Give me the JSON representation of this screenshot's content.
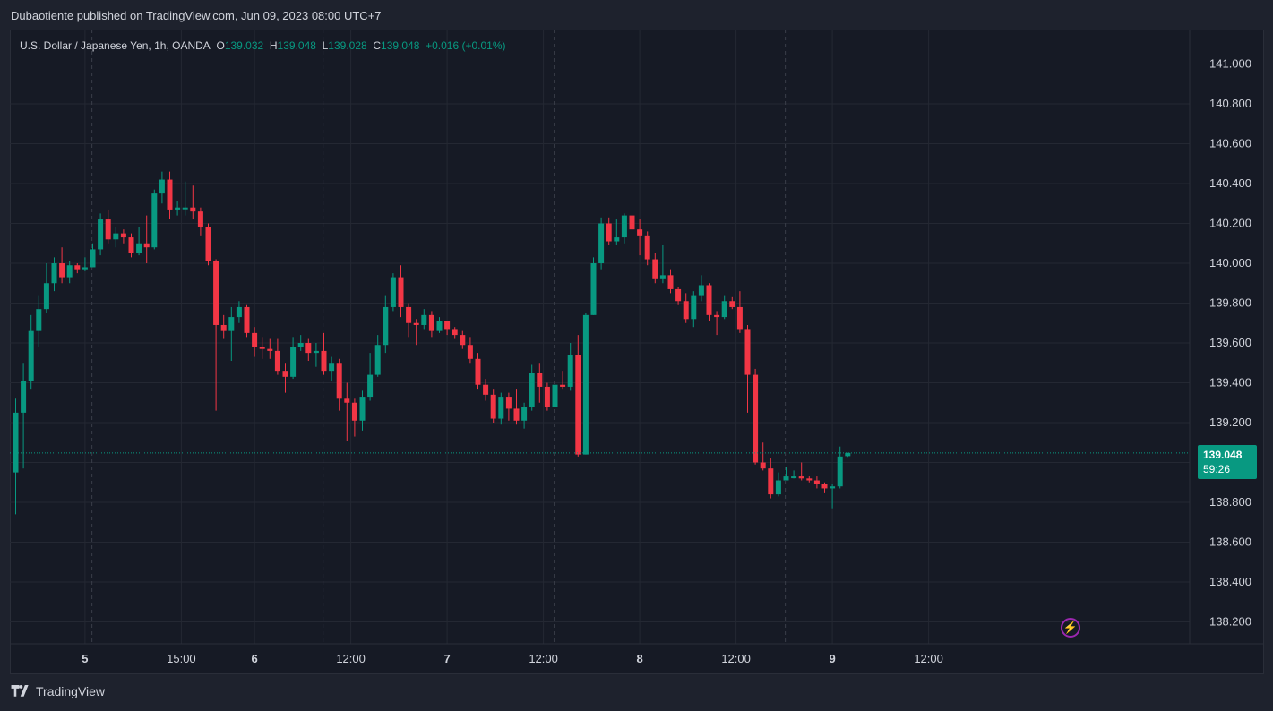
{
  "header": {
    "publisher_line": "Dubaotiente published on TradingView.com, Jun 09, 2023 08:00 UTC+7"
  },
  "legend": {
    "symbol": "U.S. Dollar / Japanese Yen, 1h, OANDA",
    "o_label": "O",
    "o_value": "139.032",
    "h_label": "H",
    "h_value": "139.048",
    "l_label": "L",
    "l_value": "139.028",
    "c_label": "C",
    "c_value": "139.048",
    "change": "+0.016 (+0.01%)"
  },
  "last_price": {
    "value": "139.048",
    "countdown": "59:26"
  },
  "footer": {
    "brand": "TradingView"
  },
  "icons": {
    "flash": "flash-icon",
    "logo": "tradingview-logo-icon"
  },
  "colors": {
    "up": "#089981",
    "down": "#f23645",
    "background": "#161a25",
    "grid": "#242833",
    "text": "#d1d4dc"
  },
  "chart_data": {
    "type": "candlestick",
    "ylim": [
      138.1,
      141.1
    ],
    "yticks": [
      138.2,
      138.4,
      138.6,
      138.8,
      139.0,
      139.2,
      139.4,
      139.6,
      139.8,
      140.0,
      140.2,
      140.4,
      140.6,
      140.8,
      141.0
    ],
    "ytick_labels": [
      "138.200",
      "138.400",
      "138.600",
      "138.800",
      "139.000",
      "139.200",
      "139.400",
      "139.600",
      "139.800",
      "140.000",
      "140.200",
      "140.400",
      "140.600",
      "140.800",
      "141.000"
    ],
    "xticks": [
      {
        "label": "5",
        "index": 9,
        "bold": true
      },
      {
        "label": "15:00",
        "index": 21.5,
        "bold": false
      },
      {
        "label": "6",
        "index": 31,
        "bold": true
      },
      {
        "label": "12:00",
        "index": 43.5,
        "bold": false
      },
      {
        "label": "7",
        "index": 56,
        "bold": true
      },
      {
        "label": "12:00",
        "index": 68.5,
        "bold": false
      },
      {
        "label": "8",
        "index": 81,
        "bold": true
      },
      {
        "label": "12:00",
        "index": 93.5,
        "bold": false
      },
      {
        "label": "9",
        "index": 106,
        "bold": true
      },
      {
        "label": "12:00",
        "index": 118.5,
        "bold": false
      }
    ],
    "last_price": 139.048,
    "candles": [
      [
        138.95,
        139.25,
        139.32,
        138.74
      ],
      [
        139.25,
        139.41,
        139.5,
        138.97
      ],
      [
        139.41,
        139.66,
        139.74,
        139.37
      ],
      [
        139.66,
        139.77,
        139.84,
        139.58
      ],
      [
        139.77,
        139.9,
        140.0,
        139.75
      ],
      [
        139.9,
        140.0,
        140.03,
        139.86
      ],
      [
        140.0,
        139.93,
        140.08,
        139.9
      ],
      [
        139.93,
        139.99,
        140.01,
        139.9
      ],
      [
        139.99,
        139.97,
        140.0,
        139.95
      ],
      [
        139.97,
        139.98,
        140.03,
        139.96
      ],
      [
        139.98,
        140.07,
        140.1,
        139.98
      ],
      [
        140.07,
        140.22,
        140.25,
        140.04
      ],
      [
        140.22,
        140.12,
        140.27,
        140.1
      ],
      [
        140.12,
        140.15,
        140.18,
        140.08
      ],
      [
        140.15,
        140.13,
        140.17,
        140.1
      ],
      [
        140.13,
        140.05,
        140.15,
        140.03
      ],
      [
        140.05,
        140.1,
        140.18,
        140.04
      ],
      [
        140.1,
        140.08,
        140.24,
        140.0
      ],
      [
        140.08,
        140.35,
        140.37,
        140.07
      ],
      [
        140.35,
        140.42,
        140.46,
        140.3
      ],
      [
        140.42,
        140.27,
        140.46,
        140.22
      ],
      [
        140.27,
        140.28,
        140.31,
        140.24
      ],
      [
        140.28,
        140.28,
        140.41,
        140.24
      ],
      [
        140.28,
        140.26,
        140.39,
        140.22
      ],
      [
        140.26,
        140.18,
        140.28,
        140.14
      ],
      [
        140.18,
        140.01,
        140.2,
        139.99
      ],
      [
        140.01,
        139.69,
        140.02,
        139.26
      ],
      [
        139.69,
        139.66,
        139.74,
        139.62
      ],
      [
        139.66,
        139.73,
        139.78,
        139.51
      ],
      [
        139.73,
        139.78,
        139.81,
        139.7
      ],
      [
        139.78,
        139.65,
        139.79,
        139.63
      ],
      [
        139.65,
        139.58,
        139.68,
        139.53
      ],
      [
        139.58,
        139.57,
        139.63,
        139.52
      ],
      [
        139.57,
        139.56,
        139.62,
        139.52
      ],
      [
        139.56,
        139.46,
        139.62,
        139.44
      ],
      [
        139.46,
        139.43,
        139.5,
        139.35
      ],
      [
        139.43,
        139.58,
        139.63,
        139.42
      ],
      [
        139.58,
        139.6,
        139.64,
        139.56
      ],
      [
        139.6,
        139.55,
        139.62,
        139.51
      ],
      [
        139.55,
        139.56,
        139.6,
        139.48
      ],
      [
        139.56,
        139.46,
        139.65,
        139.44
      ],
      [
        139.46,
        139.5,
        139.53,
        139.41
      ],
      [
        139.5,
        139.32,
        139.52,
        139.26
      ],
      [
        139.32,
        139.3,
        139.4,
        139.11
      ],
      [
        139.3,
        139.21,
        139.32,
        139.13
      ],
      [
        139.21,
        139.33,
        139.36,
        139.16
      ],
      [
        139.33,
        139.44,
        139.55,
        139.31
      ],
      [
        139.44,
        139.59,
        139.64,
        139.43
      ],
      [
        139.59,
        139.78,
        139.84,
        139.55
      ],
      [
        139.78,
        139.93,
        139.95,
        139.76
      ],
      [
        139.93,
        139.78,
        139.99,
        139.73
      ],
      [
        139.78,
        139.7,
        139.8,
        139.63
      ],
      [
        139.7,
        139.69,
        139.72,
        139.59
      ],
      [
        139.69,
        139.74,
        139.77,
        139.67
      ],
      [
        139.74,
        139.66,
        139.76,
        139.63
      ],
      [
        139.66,
        139.71,
        139.73,
        139.65
      ],
      [
        139.71,
        139.67,
        139.71,
        139.64
      ],
      [
        139.67,
        139.64,
        139.68,
        139.62
      ],
      [
        139.64,
        139.59,
        139.66,
        139.57
      ],
      [
        139.59,
        139.52,
        139.63,
        139.5
      ],
      [
        139.52,
        139.39,
        139.55,
        139.37
      ],
      [
        139.39,
        139.34,
        139.42,
        139.31
      ],
      [
        139.34,
        139.22,
        139.37,
        139.2
      ],
      [
        139.22,
        139.33,
        139.35,
        139.19
      ],
      [
        139.33,
        139.27,
        139.35,
        139.21
      ],
      [
        139.27,
        139.21,
        139.37,
        139.19
      ],
      [
        139.21,
        139.28,
        139.3,
        139.17
      ],
      [
        139.28,
        139.45,
        139.49,
        139.26
      ],
      [
        139.45,
        139.38,
        139.5,
        139.3
      ],
      [
        139.38,
        139.28,
        139.4,
        139.26
      ],
      [
        139.28,
        139.39,
        139.42,
        139.25
      ],
      [
        139.39,
        139.38,
        139.46,
        139.37
      ],
      [
        139.38,
        139.54,
        139.6,
        139.36
      ],
      [
        139.54,
        139.04,
        139.64,
        139.03
      ],
      [
        139.04,
        139.74,
        139.75,
        139.04
      ],
      [
        139.74,
        140.0,
        140.03,
        139.74
      ],
      [
        140.0,
        140.2,
        140.23,
        139.97
      ],
      [
        140.2,
        140.11,
        140.23,
        140.09
      ],
      [
        140.11,
        140.13,
        140.22,
        140.09
      ],
      [
        140.13,
        140.24,
        140.25,
        140.1
      ],
      [
        140.24,
        140.17,
        140.25,
        140.06
      ],
      [
        140.17,
        140.14,
        140.22,
        140.04
      ],
      [
        140.14,
        140.02,
        140.16,
        139.99
      ],
      [
        140.02,
        139.92,
        140.05,
        139.9
      ],
      [
        139.92,
        139.94,
        140.09,
        139.9
      ],
      [
        139.94,
        139.87,
        139.97,
        139.85
      ],
      [
        139.87,
        139.81,
        139.88,
        139.79
      ],
      [
        139.81,
        139.72,
        139.85,
        139.7
      ],
      [
        139.72,
        139.84,
        139.86,
        139.68
      ],
      [
        139.84,
        139.89,
        139.94,
        139.81
      ],
      [
        139.89,
        139.74,
        139.9,
        139.71
      ],
      [
        139.74,
        139.73,
        139.76,
        139.64
      ],
      [
        139.73,
        139.81,
        139.84,
        139.72
      ],
      [
        139.81,
        139.78,
        139.83,
        139.77
      ],
      [
        139.78,
        139.67,
        139.86,
        139.65
      ],
      [
        139.67,
        139.44,
        139.69,
        139.25
      ],
      [
        139.44,
        139.0,
        139.47,
        138.99
      ],
      [
        139.0,
        138.97,
        139.1,
        138.96
      ],
      [
        138.97,
        138.84,
        139.02,
        138.82
      ],
      [
        138.84,
        138.91,
        138.95,
        138.83
      ],
      [
        138.91,
        138.93,
        138.98,
        138.91
      ],
      [
        138.93,
        138.93,
        138.96,
        138.92
      ],
      [
        138.93,
        138.92,
        139.0,
        138.91
      ],
      [
        138.92,
        138.91,
        138.93,
        138.9
      ],
      [
        138.91,
        138.89,
        138.93,
        138.87
      ],
      [
        138.89,
        138.87,
        138.9,
        138.85
      ],
      [
        138.87,
        138.88,
        138.89,
        138.77
      ],
      [
        138.88,
        139.03,
        139.08,
        138.87
      ],
      [
        139.032,
        139.048,
        139.048,
        139.028
      ]
    ]
  }
}
